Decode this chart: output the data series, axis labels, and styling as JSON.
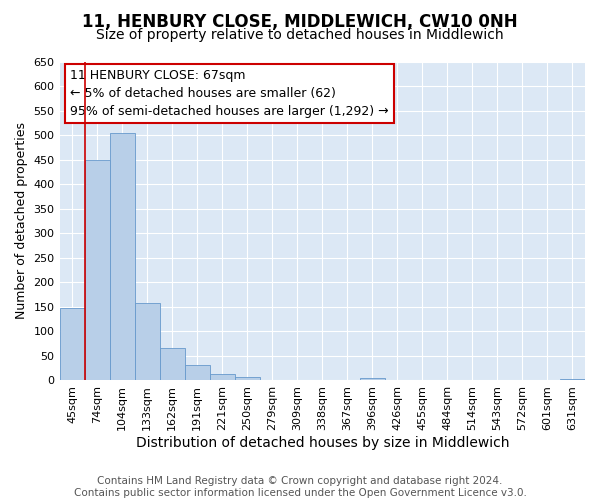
{
  "title": "11, HENBURY CLOSE, MIDDLEWICH, CW10 0NH",
  "subtitle": "Size of property relative to detached houses in Middlewich",
  "xlabel": "Distribution of detached houses by size in Middlewich",
  "ylabel": "Number of detached properties",
  "categories": [
    "45sqm",
    "74sqm",
    "104sqm",
    "133sqm",
    "162sqm",
    "191sqm",
    "221sqm",
    "250sqm",
    "279sqm",
    "309sqm",
    "338sqm",
    "367sqm",
    "396sqm",
    "426sqm",
    "455sqm",
    "484sqm",
    "514sqm",
    "543sqm",
    "572sqm",
    "601sqm",
    "631sqm"
  ],
  "values": [
    147,
    449,
    505,
    157,
    67,
    31,
    13,
    7,
    0,
    0,
    0,
    0,
    5,
    0,
    0,
    0,
    0,
    0,
    0,
    0,
    3
  ],
  "bar_color": "#b8cfe8",
  "bar_edge_color": "#6699cc",
  "highlight_line_color": "#cc0000",
  "annotation_text": "11 HENBURY CLOSE: 67sqm\n← 5% of detached houses are smaller (62)\n95% of semi-detached houses are larger (1,292) →",
  "annotation_box_color": "#ffffff",
  "annotation_box_edge_color": "#cc0000",
  "ylim": [
    0,
    650
  ],
  "yticks": [
    0,
    50,
    100,
    150,
    200,
    250,
    300,
    350,
    400,
    450,
    500,
    550,
    600,
    650
  ],
  "plot_bg_color": "#dce8f5",
  "grid_color": "#ffffff",
  "fig_bg_color": "#ffffff",
  "footer_text": "Contains HM Land Registry data © Crown copyright and database right 2024.\nContains public sector information licensed under the Open Government Licence v3.0.",
  "title_fontsize": 12,
  "subtitle_fontsize": 10,
  "xlabel_fontsize": 10,
  "ylabel_fontsize": 9,
  "tick_fontsize": 8,
  "annotation_fontsize": 9,
  "footer_fontsize": 7.5
}
